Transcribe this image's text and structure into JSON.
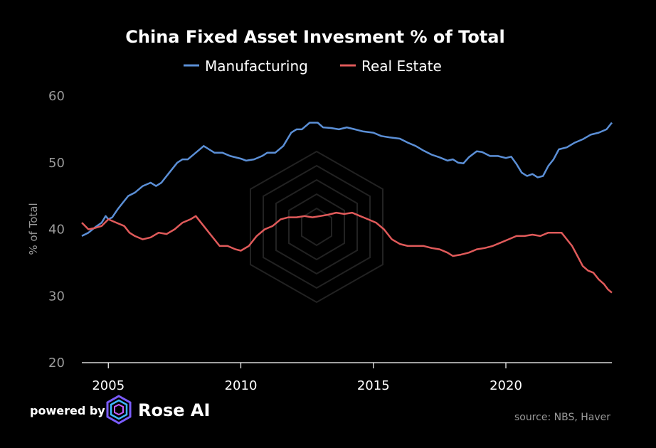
{
  "chart_data": {
    "type": "line",
    "title": "China Fixed Asset Invesment % of Total",
    "ylabel": "% of Total",
    "xlabel": "",
    "xlim": [
      2004.0,
      2024.0
    ],
    "ylim": [
      20,
      60
    ],
    "yticks": [
      20,
      30,
      40,
      50,
      60
    ],
    "xticks": [
      2005,
      2010,
      2015,
      2020
    ],
    "grid": false,
    "legend_position": "top-center",
    "series": [
      {
        "name": "Manufacturing",
        "color": "#5b8fd6",
        "points": [
          [
            2004.0,
            39.0
          ],
          [
            2004.25,
            39.5
          ],
          [
            2004.5,
            40.3
          ],
          [
            2004.75,
            41.0
          ],
          [
            2004.9,
            42.0
          ],
          [
            2005.0,
            41.5
          ],
          [
            2005.15,
            41.8
          ],
          [
            2005.35,
            43.0
          ],
          [
            2005.55,
            44.0
          ],
          [
            2005.75,
            45.0
          ],
          [
            2006.0,
            45.5
          ],
          [
            2006.3,
            46.5
          ],
          [
            2006.6,
            47.0
          ],
          [
            2006.8,
            46.5
          ],
          [
            2007.0,
            47.0
          ],
          [
            2007.3,
            48.5
          ],
          [
            2007.6,
            50.0
          ],
          [
            2007.8,
            50.5
          ],
          [
            2008.0,
            50.5
          ],
          [
            2008.3,
            51.5
          ],
          [
            2008.6,
            52.5
          ],
          [
            2008.8,
            52.0
          ],
          [
            2009.0,
            51.5
          ],
          [
            2009.3,
            51.5
          ],
          [
            2009.6,
            51.0
          ],
          [
            2010.0,
            50.6
          ],
          [
            2010.2,
            50.3
          ],
          [
            2010.5,
            50.5
          ],
          [
            2010.8,
            51.0
          ],
          [
            2011.0,
            51.5
          ],
          [
            2011.3,
            51.5
          ],
          [
            2011.6,
            52.5
          ],
          [
            2011.9,
            54.5
          ],
          [
            2012.1,
            55.0
          ],
          [
            2012.3,
            55.0
          ],
          [
            2012.6,
            56.0
          ],
          [
            2012.9,
            56.0
          ],
          [
            2013.1,
            55.3
          ],
          [
            2013.4,
            55.2
          ],
          [
            2013.7,
            55.0
          ],
          [
            2014.0,
            55.3
          ],
          [
            2014.3,
            55.0
          ],
          [
            2014.6,
            54.7
          ],
          [
            2015.0,
            54.5
          ],
          [
            2015.3,
            54.0
          ],
          [
            2015.6,
            53.8
          ],
          [
            2016.0,
            53.6
          ],
          [
            2016.3,
            53.0
          ],
          [
            2016.6,
            52.5
          ],
          [
            2016.9,
            51.8
          ],
          [
            2017.2,
            51.2
          ],
          [
            2017.5,
            50.8
          ],
          [
            2017.8,
            50.3
          ],
          [
            2018.0,
            50.5
          ],
          [
            2018.2,
            50.0
          ],
          [
            2018.4,
            49.9
          ],
          [
            2018.6,
            50.8
          ],
          [
            2018.9,
            51.7
          ],
          [
            2019.1,
            51.6
          ],
          [
            2019.4,
            51.0
          ],
          [
            2019.7,
            51.0
          ],
          [
            2020.0,
            50.7
          ],
          [
            2020.2,
            50.9
          ],
          [
            2020.4,
            49.8
          ],
          [
            2020.6,
            48.5
          ],
          [
            2020.8,
            48.0
          ],
          [
            2021.0,
            48.3
          ],
          [
            2021.2,
            47.8
          ],
          [
            2021.4,
            48.0
          ],
          [
            2021.6,
            49.5
          ],
          [
            2021.8,
            50.5
          ],
          [
            2022.0,
            52.0
          ],
          [
            2022.3,
            52.3
          ],
          [
            2022.6,
            53.0
          ],
          [
            2022.9,
            53.5
          ],
          [
            2023.2,
            54.2
          ],
          [
            2023.5,
            54.5
          ],
          [
            2023.8,
            55.0
          ],
          [
            2024.0,
            56.0
          ]
        ]
      },
      {
        "name": "Real Estate",
        "color": "#e05a5a",
        "points": [
          [
            2004.0,
            41.0
          ],
          [
            2004.25,
            40.0
          ],
          [
            2004.5,
            40.2
          ],
          [
            2004.75,
            40.5
          ],
          [
            2005.0,
            41.5
          ],
          [
            2005.3,
            41.0
          ],
          [
            2005.6,
            40.5
          ],
          [
            2005.8,
            39.5
          ],
          [
            2006.0,
            39.0
          ],
          [
            2006.3,
            38.5
          ],
          [
            2006.6,
            38.8
          ],
          [
            2006.9,
            39.5
          ],
          [
            2007.2,
            39.3
          ],
          [
            2007.5,
            40.0
          ],
          [
            2007.8,
            41.0
          ],
          [
            2008.1,
            41.5
          ],
          [
            2008.3,
            42.0
          ],
          [
            2008.6,
            40.5
          ],
          [
            2008.9,
            39.0
          ],
          [
            2009.2,
            37.5
          ],
          [
            2009.5,
            37.5
          ],
          [
            2009.8,
            37.0
          ],
          [
            2010.0,
            36.8
          ],
          [
            2010.3,
            37.5
          ],
          [
            2010.6,
            39.0
          ],
          [
            2010.9,
            40.0
          ],
          [
            2011.2,
            40.5
          ],
          [
            2011.5,
            41.5
          ],
          [
            2011.8,
            41.8
          ],
          [
            2012.1,
            41.8
          ],
          [
            2012.4,
            42.0
          ],
          [
            2012.7,
            41.8
          ],
          [
            2013.0,
            42.0
          ],
          [
            2013.3,
            42.2
          ],
          [
            2013.6,
            42.5
          ],
          [
            2013.9,
            42.3
          ],
          [
            2014.2,
            42.5
          ],
          [
            2014.5,
            42.0
          ],
          [
            2014.8,
            41.5
          ],
          [
            2015.1,
            41.0
          ],
          [
            2015.4,
            40.0
          ],
          [
            2015.7,
            38.5
          ],
          [
            2016.0,
            37.8
          ],
          [
            2016.3,
            37.5
          ],
          [
            2016.6,
            37.5
          ],
          [
            2016.9,
            37.5
          ],
          [
            2017.2,
            37.2
          ],
          [
            2017.5,
            37.0
          ],
          [
            2017.8,
            36.5
          ],
          [
            2018.0,
            36.0
          ],
          [
            2018.3,
            36.2
          ],
          [
            2018.6,
            36.5
          ],
          [
            2018.9,
            37.0
          ],
          [
            2019.2,
            37.2
          ],
          [
            2019.5,
            37.5
          ],
          [
            2019.8,
            38.0
          ],
          [
            2020.1,
            38.5
          ],
          [
            2020.4,
            39.0
          ],
          [
            2020.7,
            39.0
          ],
          [
            2021.0,
            39.2
          ],
          [
            2021.3,
            39.0
          ],
          [
            2021.6,
            39.5
          ],
          [
            2021.9,
            39.5
          ],
          [
            2022.1,
            39.5
          ],
          [
            2022.3,
            38.5
          ],
          [
            2022.5,
            37.5
          ],
          [
            2022.7,
            36.0
          ],
          [
            2022.9,
            34.5
          ],
          [
            2023.1,
            33.8
          ],
          [
            2023.3,
            33.5
          ],
          [
            2023.5,
            32.5
          ],
          [
            2023.7,
            31.8
          ],
          [
            2023.85,
            31.0
          ],
          [
            2024.0,
            30.5
          ]
        ]
      }
    ]
  },
  "footer": {
    "powered_by": "powered by",
    "brand": "Rose AI",
    "source": "source: NBS, Haver"
  }
}
